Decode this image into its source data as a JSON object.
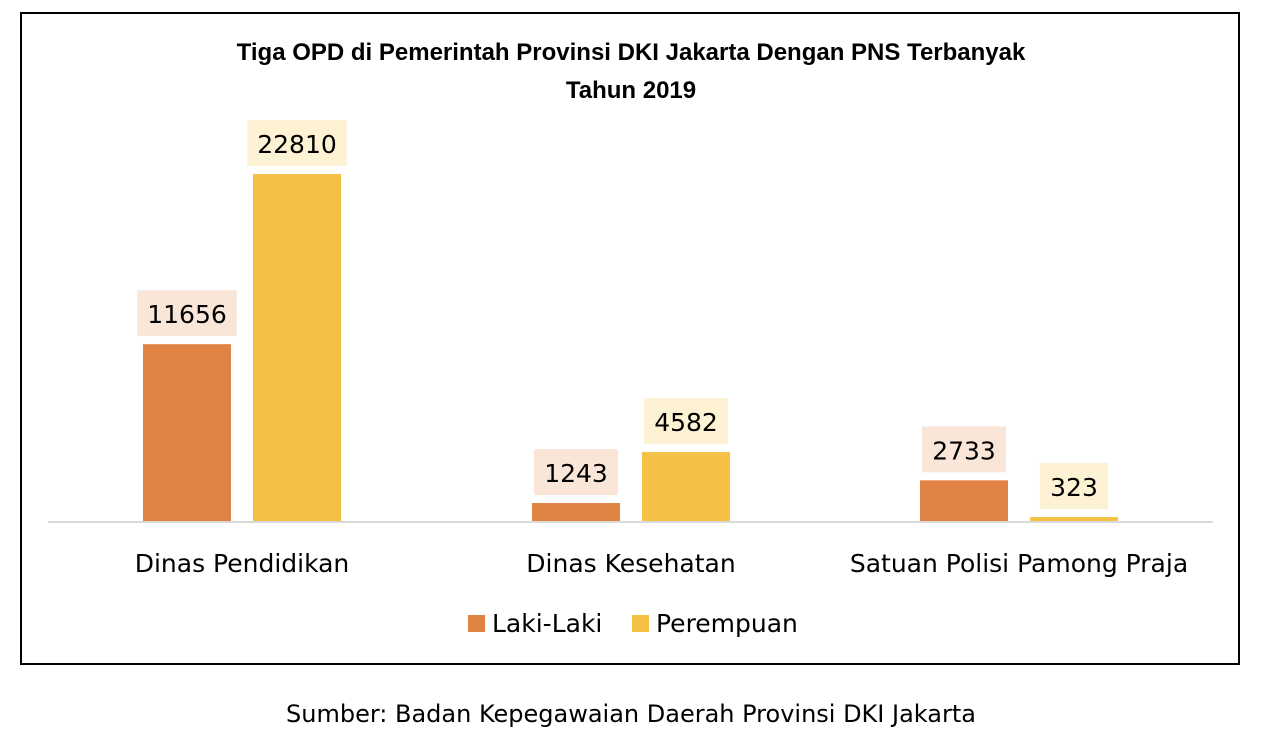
{
  "chart_data": {
    "type": "bar",
    "title": "Tiga OPD di Pemerintah Provinsi DKI Jakarta Dengan PNS Terbanyak",
    "subtitle": "Tahun 2019",
    "categories": [
      "Dinas Pendidikan",
      "Dinas Kesehatan",
      "Satuan Polisi Pamong Praja"
    ],
    "series": [
      {
        "name": "Laki-Laki",
        "values": [
          11656,
          1243,
          2733
        ],
        "color": "#E08244",
        "label_bg": "#FAE6D9"
      },
      {
        "name": "Perempuan",
        "values": [
          22810,
          4582,
          323
        ],
        "color": "#F4C145",
        "label_bg": "#FDF2D4"
      }
    ],
    "ylim": [
      0,
      22810
    ],
    "grid": false,
    "legend_position": "bottom"
  },
  "source_note": "Sumber: Badan Kepegawaian Daerah Provinsi DKI Jakarta"
}
